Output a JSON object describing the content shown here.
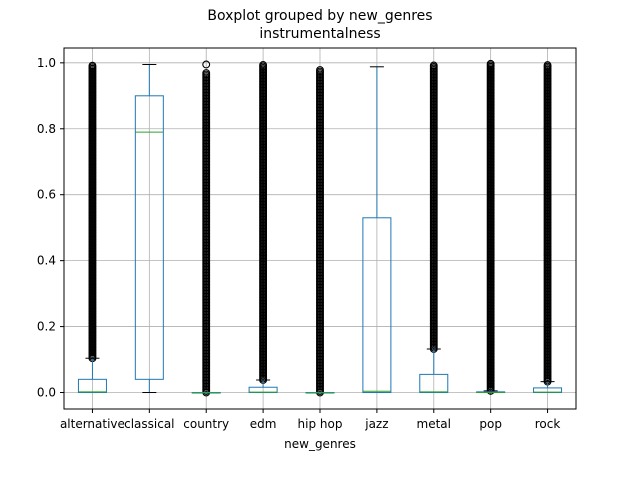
{
  "suptitle": "Boxplot grouped by new_genres",
  "subtitle": "instrumentalness",
  "chart_data": {
    "type": "boxplot",
    "title": "instrumentalness",
    "xlabel": "new_genres",
    "ylabel": "",
    "ylim": [
      -0.05,
      1.045
    ],
    "yticks": [
      0.0,
      0.2,
      0.4,
      0.6,
      0.8,
      1.0
    ],
    "ytick_labels": [
      "0.0",
      "0.2",
      "0.4",
      "0.6",
      "0.8",
      "1.0"
    ],
    "grid": true,
    "colors": {
      "box": "#1f77b4",
      "median": "#2ca02c",
      "whisker_cap": "#000000",
      "grid": "#b0b0b0",
      "outlier": "#000000"
    },
    "categories": [
      "alternative",
      "classical",
      "country",
      "edm",
      "hip hop",
      "jazz",
      "metal",
      "pop",
      "rock"
    ],
    "boxes": [
      {
        "name": "alternative",
        "whislo": 0.0,
        "q1": 0.0,
        "med": 0.002,
        "q3": 0.04,
        "whishi": 0.104,
        "outliers_range": [
          0.104,
          0.995
        ]
      },
      {
        "name": "classical",
        "whislo": 0.0,
        "q1": 0.04,
        "med": 0.79,
        "q3": 0.9,
        "whishi": 0.995,
        "outliers_range": null
      },
      {
        "name": "country",
        "whislo": 0.0,
        "q1": 0.0,
        "med": 0.0,
        "q3": 0.0,
        "whishi": 0.0,
        "outliers_range": [
          0.0,
          0.97
        ],
        "extra_outliers": [
          0.995
        ]
      },
      {
        "name": "edm",
        "whislo": 0.0,
        "q1": 0.0,
        "med": 0.001,
        "q3": 0.016,
        "whishi": 0.038,
        "outliers_range": [
          0.038,
          0.995
        ]
      },
      {
        "name": "hip hop",
        "whislo": 0.0,
        "q1": 0.0,
        "med": 0.0,
        "q3": 0.0,
        "whishi": 0.0,
        "outliers_range": [
          0.0,
          0.98
        ]
      },
      {
        "name": "jazz",
        "whislo": 0.0,
        "q1": 0.0,
        "med": 0.004,
        "q3": 0.53,
        "whishi": 0.988,
        "outliers_range": null
      },
      {
        "name": "metal",
        "whislo": 0.0,
        "q1": 0.0,
        "med": 0.002,
        "q3": 0.055,
        "whishi": 0.132,
        "outliers_range": [
          0.132,
          0.995
        ]
      },
      {
        "name": "pop",
        "whislo": 0.0,
        "q1": 0.0,
        "med": 0.0,
        "q3": 0.002,
        "whishi": 0.005,
        "outliers_range": [
          0.005,
          0.997
        ]
      },
      {
        "name": "rock",
        "whislo": 0.0,
        "q1": 0.0,
        "med": 0.001,
        "q3": 0.014,
        "whishi": 0.033,
        "outliers_range": [
          0.033,
          0.995
        ]
      }
    ]
  }
}
